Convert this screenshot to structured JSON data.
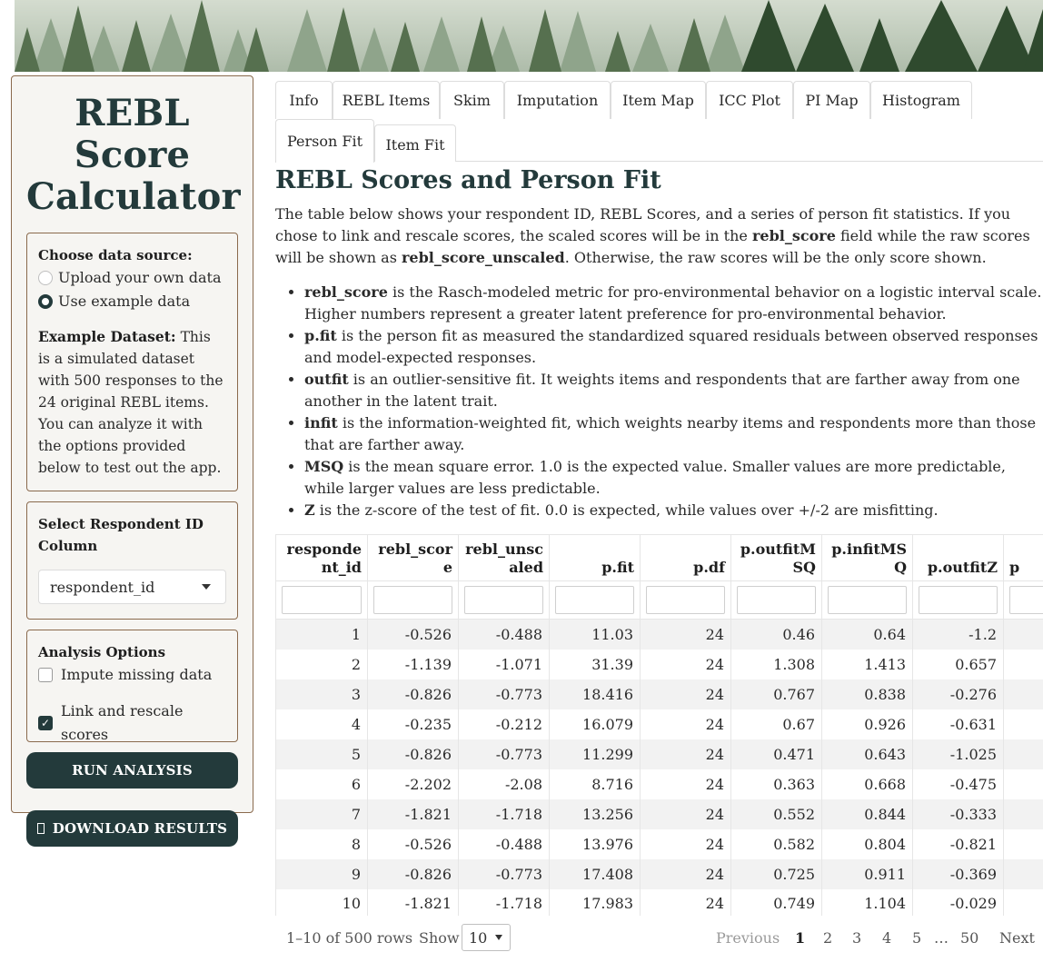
{
  "sidebar": {
    "title": "REBL Score Calculator",
    "data_source": {
      "label": "Choose data source:",
      "options": [
        {
          "label": "Upload your own data",
          "selected": false
        },
        {
          "label": "Use example data",
          "selected": true
        }
      ],
      "example_heading": "Example Dataset:",
      "example_text": " This is a simulated dataset with 500 responses to the 24 original REBL items. You can analyze it with the options provided below to test out the app."
    },
    "respondent": {
      "label": "Select Respondent ID Column",
      "value": "respondent_id"
    },
    "options": {
      "label": "Analysis Options",
      "impute_label": "Impute missing data",
      "impute_checked": false,
      "link_label": "Link and rescale scores",
      "link_checked": true
    },
    "run_button": "RUN ANALYSIS",
    "download_button": "DOWNLOAD RESULTS",
    "download_icon": "download-icon"
  },
  "tabs": [
    {
      "label": "Info",
      "active": false
    },
    {
      "label": "REBL Items",
      "active": false
    },
    {
      "label": "Skim",
      "active": false
    },
    {
      "label": "Imputation",
      "active": false
    },
    {
      "label": "Item Map",
      "active": false
    },
    {
      "label": "ICC Plot",
      "active": false
    },
    {
      "label": "PI Map",
      "active": false
    },
    {
      "label": "Histogram",
      "active": false
    },
    {
      "label": "Person Fit",
      "active": true
    },
    {
      "label": "Item Fit",
      "active": false
    }
  ],
  "main": {
    "title": "REBL Scores and Person Fit",
    "intro_1": "The table below shows your respondent ID, REBL Scores, and a series of person fit statistics. If you chose to link and rescale scores, the scaled scores will be in the ",
    "intro_b1": "rebl_score",
    "intro_2": " field while the raw scores will be shown as ",
    "intro_b2": "rebl_score_unscaled",
    "intro_3": ". Otherwise, the raw scores will be the only score shown.",
    "definitions": [
      {
        "term": "rebl_score",
        "text": " is the Rasch-modeled metric for pro-environmental behavior on a logistic interval scale. Higher numbers represent a greater latent preference for pro-environmental behavior."
      },
      {
        "term": "p.fit",
        "text": " is the person fit as measured the standardized squared residuals between observed responses and model-expected responses."
      },
      {
        "term": "outfit",
        "text": " is an outlier-sensitive fit. It weights items and respondents that are farther away from one another in the latent trait."
      },
      {
        "term": "infit",
        "text": " is the information-weighted fit, which weights nearby items and respondents more than those that are farther away."
      },
      {
        "term": "MSQ",
        "text": " is the mean square error. 1.0 is the expected value. Smaller values are more predictable, while larger values are less predictable."
      },
      {
        "term": "Z",
        "text": " is the z-score of the test of fit. 0.0 is expected, while values over +/-2 are misfitting."
      }
    ]
  },
  "table": {
    "columns": [
      "respondent_id",
      "rebl_score",
      "rebl_unscaled",
      "p.fit",
      "p.df",
      "p.outfitMSQ",
      "p.infitMSQ",
      "p.outfitZ",
      "p"
    ],
    "rows": [
      [
        "1",
        "-0.526",
        "-0.488",
        "11.03",
        "24",
        "0.46",
        "0.64",
        "-1.2",
        ""
      ],
      [
        "2",
        "-1.139",
        "-1.071",
        "31.39",
        "24",
        "1.308",
        "1.413",
        "0.657",
        ""
      ],
      [
        "3",
        "-0.826",
        "-0.773",
        "18.416",
        "24",
        "0.767",
        "0.838",
        "-0.276",
        ""
      ],
      [
        "4",
        "-0.235",
        "-0.212",
        "16.079",
        "24",
        "0.67",
        "0.926",
        "-0.631",
        ""
      ],
      [
        "5",
        "-0.826",
        "-0.773",
        "11.299",
        "24",
        "0.471",
        "0.643",
        "-1.025",
        ""
      ],
      [
        "6",
        "-2.202",
        "-2.08",
        "8.716",
        "24",
        "0.363",
        "0.668",
        "-0.475",
        ""
      ],
      [
        "7",
        "-1.821",
        "-1.718",
        "13.256",
        "24",
        "0.552",
        "0.844",
        "-0.333",
        ""
      ],
      [
        "8",
        "-0.526",
        "-0.488",
        "13.976",
        "24",
        "0.582",
        "0.804",
        "-0.821",
        ""
      ],
      [
        "9",
        "-0.826",
        "-0.773",
        "17.408",
        "24",
        "0.725",
        "0.911",
        "-0.369",
        ""
      ],
      [
        "10",
        "-1.821",
        "-1.718",
        "17.983",
        "24",
        "0.749",
        "1.104",
        "-0.029",
        ""
      ]
    ]
  },
  "pagination": {
    "row_info": "1–10 of 500 rows",
    "show_label": "Show",
    "page_size": "10",
    "previous": "Previous",
    "pages": [
      "1",
      "2",
      "3",
      "4",
      "5",
      "…",
      "50"
    ],
    "current": "1",
    "next": "Next"
  },
  "colors": {
    "accent": "#233a3b",
    "border": "#8a6a4d"
  }
}
